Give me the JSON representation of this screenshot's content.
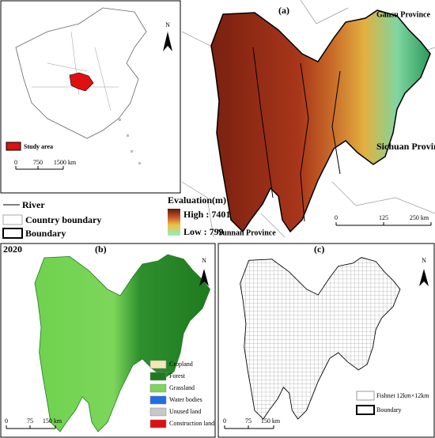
{
  "panel_a": {
    "label": "(a)",
    "provinces": [
      "Gansu Province",
      "Sichuan Province",
      "Yunnan Province"
    ],
    "inset": {
      "legend": "Study area",
      "north": "N",
      "scale": [
        "0",
        "750",
        "1500 km"
      ]
    },
    "legend": {
      "river": "River",
      "country_boundary": "Country boundary",
      "boundary": "Boundary",
      "elevation_title": "Evaluation(m)",
      "high": "High : 7401",
      "low": "Low : 799"
    },
    "scale": [
      "0",
      "125",
      "250 km"
    ]
  },
  "panel_b": {
    "year": "2020",
    "label": "(b)",
    "north": "N",
    "legend": [
      "Cropland",
      "Forest",
      "Grassland",
      "Water bodies",
      "Unused land",
      "Construction land"
    ],
    "scale": [
      "0",
      "75",
      "150 km"
    ]
  },
  "panel_c": {
    "label": "(c)",
    "north": "N",
    "legend": [
      "Fishnet 12km×12km",
      "Boundary"
    ],
    "scale": [
      "0",
      "75",
      "150 km"
    ]
  }
}
